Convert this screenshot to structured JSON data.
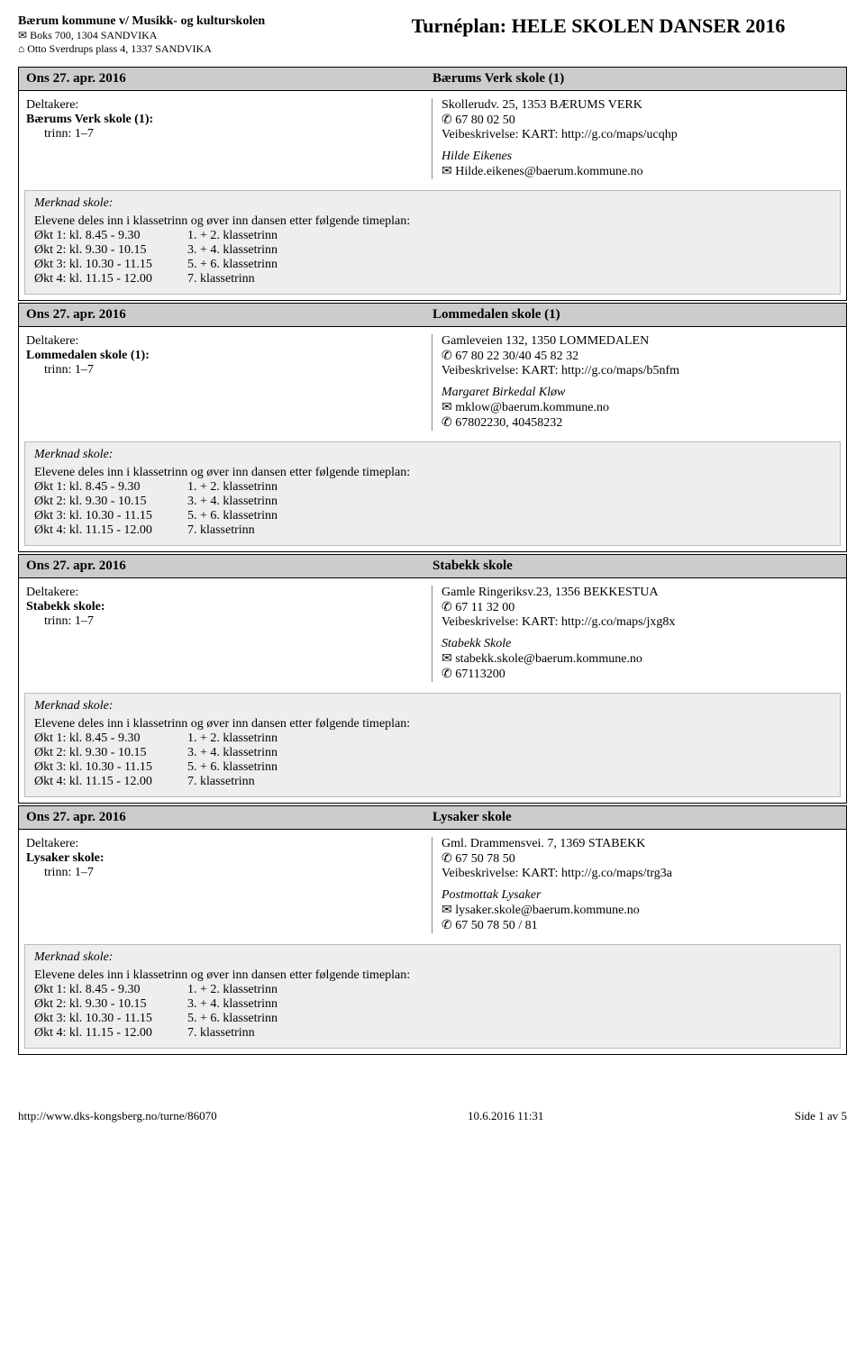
{
  "sender": {
    "name": "Bærum kommune v/ Musikk- og kulturskolen",
    "line1_icon": "✉",
    "line1": "Boks 700, 1304 SANDVIKA",
    "line2_icon": "⌂",
    "line2": "Otto Sverdrups plass 4, 1337 SANDVIKA"
  },
  "page_title": "Turnéplan: HELE SKOLEN DANSER 2016",
  "icons": {
    "phone": "✆",
    "mail": "✉"
  },
  "labels": {
    "participants": "Deltakere:",
    "trinn_prefix": "trinn: ",
    "veibeskrivelse_prefix": "Veibeskrivelse: KART: "
  },
  "remarks_block": {
    "title": "Merknad skole:",
    "intro": "Elevene deles inn i klassetrinn og øver inn dansen etter følgende timeplan:",
    "schedule": [
      {
        "time": "Økt 1: kl. 8.45 - 9.30",
        "grade": "1. + 2. klassetrinn"
      },
      {
        "time": "Økt 2: kl. 9.30 - 10.15",
        "grade": "3. + 4. klassetrinn"
      },
      {
        "time": "Økt 3: kl. 10.30 - 11.15",
        "grade": "5. + 6. klassetrinn"
      },
      {
        "time": "Økt 4: kl. 11.15 - 12.00",
        "grade": "7. klassetrinn"
      }
    ]
  },
  "events": [
    {
      "date": "Ons 27. apr. 2016",
      "venue": "Bærums Verk skole (1)",
      "participant_school": "Bærums Verk skole (1):",
      "trinn": "1–7",
      "address": "Skollerudv. 25, 1353 BÆRUMS VERK",
      "phone": "67 80 02 50",
      "map_url": "http://g.co/maps/ucqhp",
      "contact_name": "Hilde Eikenes",
      "contact_email": "Hilde.eikenes@baerum.kommune.no",
      "contact_phone": ""
    },
    {
      "date": "Ons 27. apr. 2016",
      "venue": "Lommedalen skole (1)",
      "participant_school": "Lommedalen skole (1):",
      "trinn": "1–7",
      "address": "Gamleveien 132, 1350 LOMMEDALEN",
      "phone": "67 80 22 30/40 45 82 32",
      "map_url": "http://g.co/maps/b5nfm",
      "contact_name": "Margaret Birkedal Kløw",
      "contact_email": "mklow@baerum.kommune.no",
      "contact_phone": "67802230, 40458232"
    },
    {
      "date": "Ons 27. apr. 2016",
      "venue": "Stabekk skole",
      "participant_school": "Stabekk skole:",
      "trinn": "1–7",
      "address": "Gamle Ringeriksv.23, 1356 BEKKESTUA",
      "phone": "67 11 32 00",
      "map_url": "http://g.co/maps/jxg8x",
      "contact_name": "Stabekk Skole",
      "contact_email": "stabekk.skole@baerum.kommune.no",
      "contact_phone": "67113200"
    },
    {
      "date": "Ons 27. apr. 2016",
      "venue": "Lysaker skole",
      "participant_school": "Lysaker skole:",
      "trinn": "1–7",
      "address": "Gml. Drammensvei. 7, 1369 STABEKK",
      "phone": "67 50 78 50",
      "map_url": "http://g.co/maps/trg3a",
      "contact_name": "Postmottak Lysaker",
      "contact_email": "lysaker.skole@baerum.kommune.no",
      "contact_phone": "67 50 78 50 / 81"
    }
  ],
  "footer": {
    "url": "http://www.dks-kongsberg.no/turne/86070",
    "timestamp": "10.6.2016 11:31",
    "page": "Side 1 av 5"
  }
}
